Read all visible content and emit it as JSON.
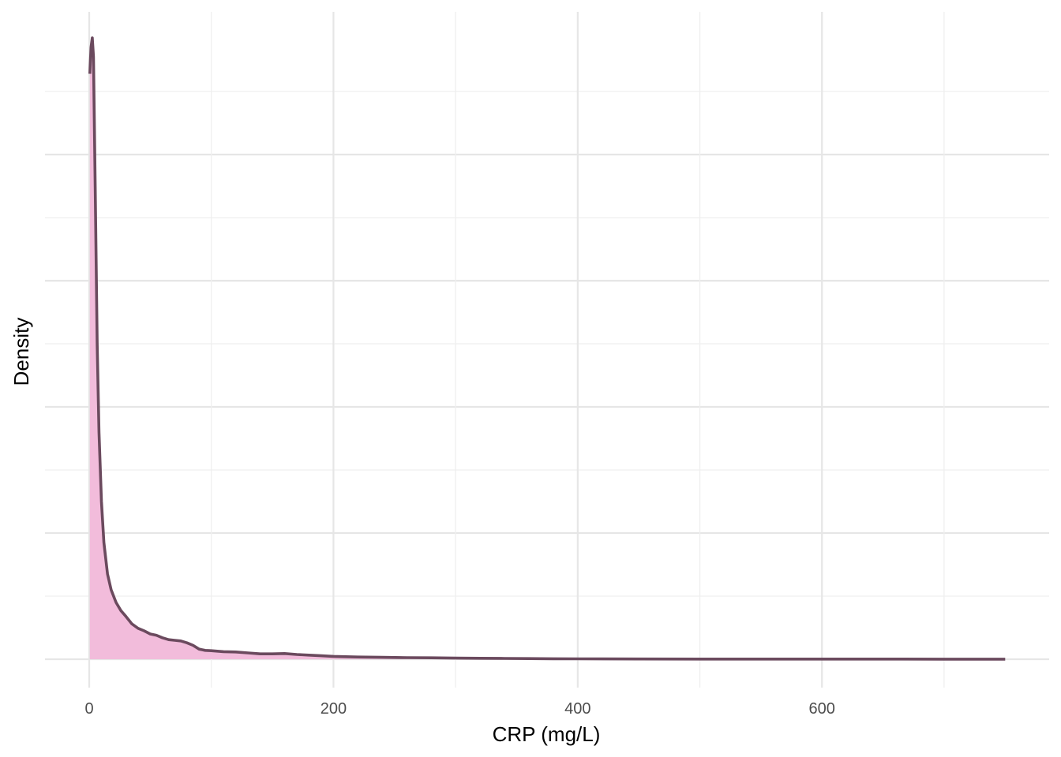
{
  "chart_data": {
    "type": "area",
    "title": "",
    "xlabel": "CRP (mg/L)",
    "ylabel": "Density",
    "xlim": [
      -35,
      780
    ],
    "x_ticks": [
      0,
      200,
      400,
      600
    ],
    "x_minor_ticks": [
      100,
      300,
      500,
      700
    ],
    "y_ticks_labels_shown": false,
    "ylim": [
      0,
      1.0
    ],
    "grid": true,
    "legend": "none",
    "colors": {
      "fill": "#f2bcdb",
      "line": "#6b4a5e",
      "grid_major": "#e6e6e6",
      "grid_minor": "#efefef"
    },
    "series": [
      {
        "x": [
          0.5,
          1.5,
          2.5,
          3.5,
          5,
          6.5,
          8,
          10,
          12,
          15,
          18,
          22,
          26,
          30,
          35,
          40,
          45,
          50,
          55,
          60,
          65,
          70,
          75,
          80,
          85,
          90,
          95,
          100,
          110,
          120,
          130,
          140,
          150,
          160,
          170,
          180,
          190,
          200,
          220,
          240,
          260,
          280,
          300,
          320,
          340,
          360,
          380,
          400,
          450,
          500,
          550,
          600,
          650,
          700,
          750
        ],
        "y": [
          0.928,
          0.97,
          0.985,
          0.955,
          0.74,
          0.5,
          0.36,
          0.25,
          0.185,
          0.135,
          0.11,
          0.09,
          0.077,
          0.068,
          0.056,
          0.049,
          0.045,
          0.04,
          0.038,
          0.034,
          0.031,
          0.03,
          0.029,
          0.026,
          0.022,
          0.016,
          0.014,
          0.0135,
          0.012,
          0.0115,
          0.01,
          0.0085,
          0.0085,
          0.009,
          0.0075,
          0.0065,
          0.0055,
          0.0045,
          0.0035,
          0.003,
          0.0025,
          0.0022,
          0.0018,
          0.0015,
          0.0012,
          0.001,
          0.0008,
          0.0006,
          0.0004,
          0.0003,
          0.0003,
          0.0002,
          0.0002,
          0.0001,
          0.0001
        ]
      }
    ]
  }
}
